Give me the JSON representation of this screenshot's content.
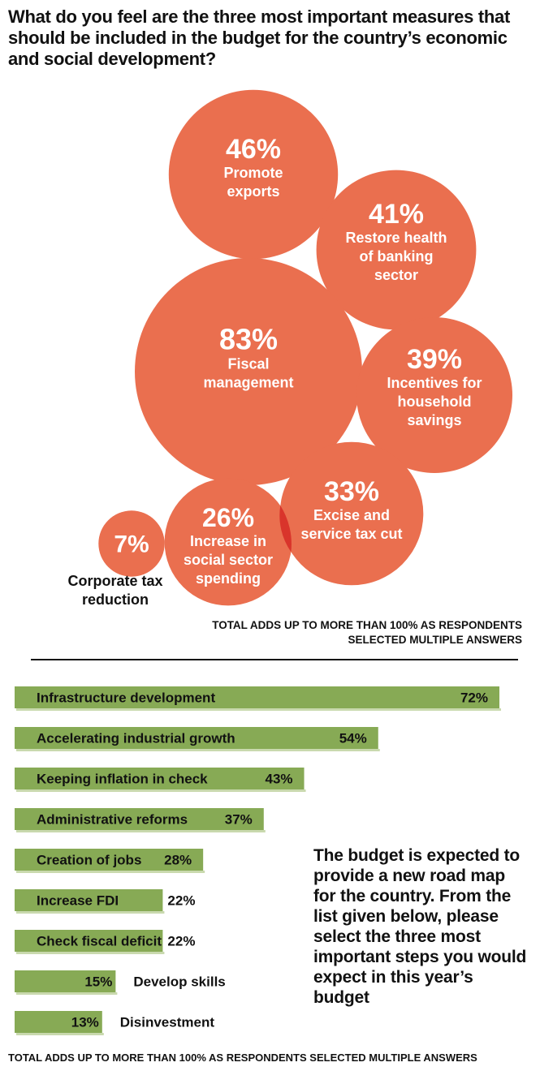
{
  "title": "What do you feel are the three most important measures that should be included in the budget for the country’s economic and social development?",
  "bubble_note": "TOTAL ADDS UP TO MORE THAN 100% AS RESPONDENTS SELECTED MULTIPLE ANSWERS",
  "bar_question": "The budget is expected to provide a new road map for the country. From the list given below, please select the three most important steps you would expect in this year’s budget",
  "bar_note": "TOTAL ADDS UP TO MORE THAN 100% AS RESPONDENTS SELECTED MULTIPLE ANSWERS",
  "colors": {
    "bubble": "#ea6f4f",
    "bubble_overlap": "#d9342b",
    "bar": "#87aa55",
    "bar_shadow": "#c9d9ae"
  },
  "chart_data": [
    {
      "type": "bubble",
      "title": "What do you feel are the three most important measures that should be included in the budget for the country’s economic and social development?",
      "items": [
        {
          "label": "Promote exports",
          "value": 46,
          "value_label": "46%"
        },
        {
          "label": "Restore health of banking sector",
          "value": 41,
          "value_label": "41%"
        },
        {
          "label": "Fiscal management",
          "value": 83,
          "value_label": "83%"
        },
        {
          "label": "Incentives for household savings",
          "value": 39,
          "value_label": "39%"
        },
        {
          "label": "Excise and service tax cut",
          "value": 33,
          "value_label": "33%"
        },
        {
          "label": "Increase in social sector spending",
          "value": 26,
          "value_label": "26%"
        },
        {
          "label": "Corporate tax reduction",
          "value": 7,
          "value_label": "7%"
        }
      ],
      "annotation": "TOTAL ADDS UP TO MORE THAN 100% AS RESPONDENTS SELECTED MULTIPLE ANSWERS"
    },
    {
      "type": "bar",
      "orientation": "horizontal",
      "categories": [
        "Infrastructure development",
        "Accelerating industrial growth",
        "Keeping inflation in check",
        "Administrative reforms",
        "Creation of jobs",
        "Increase FDI",
        "Check fiscal deficit",
        "Develop skills",
        "Disinvestment"
      ],
      "values": [
        72,
        54,
        43,
        37,
        28,
        22,
        22,
        15,
        13
      ],
      "value_labels": [
        "72%",
        "54%",
        "43%",
        "37%",
        "28%",
        "22%",
        "22%",
        "15%",
        "13%"
      ],
      "annotation": "TOTAL ADDS UP TO MORE THAN 100% AS RESPONDENTS SELECTED MULTIPLE ANSWERS"
    }
  ]
}
